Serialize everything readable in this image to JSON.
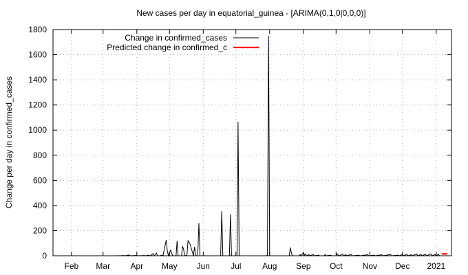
{
  "chart_data": {
    "type": "line",
    "title": "New cases per day in equatorial_guinea -  [ARIMA(0,1,0|0,0,0)]",
    "xlabel": "",
    "ylabel": "Change per day in confirmed_cases",
    "ylim": [
      0,
      1800
    ],
    "xlim": [
      "2020-01-15",
      "2021-01-15"
    ],
    "yticks": [
      0,
      200,
      400,
      600,
      800,
      1000,
      1200,
      1400,
      1600,
      1800
    ],
    "xticks": [
      {
        "label": "Feb",
        "date": "2020-02-01"
      },
      {
        "label": "Mar",
        "date": "2020-03-01"
      },
      {
        "label": "Apr",
        "date": "2020-04-01"
      },
      {
        "label": "May",
        "date": "2020-05-01"
      },
      {
        "label": "Jun",
        "date": "2020-06-01"
      },
      {
        "label": "Jul",
        "date": "2020-07-01"
      },
      {
        "label": "Aug",
        "date": "2020-08-01"
      },
      {
        "label": "Sep",
        "date": "2020-09-01"
      },
      {
        "label": "Oct",
        "date": "2020-10-01"
      },
      {
        "label": "Nov",
        "date": "2020-11-01"
      },
      {
        "label": "Dec",
        "date": "2020-12-01"
      },
      {
        "label": "2021",
        "date": "2021-01-01"
      }
    ],
    "grid": true,
    "legend_position": "top-right",
    "series": [
      {
        "name": "Change in confirmed_cases",
        "color": "#000000",
        "points": [
          [
            "2020-03-14",
            0
          ],
          [
            "2020-03-15",
            1
          ],
          [
            "2020-03-16",
            0
          ],
          [
            "2020-03-20",
            2
          ],
          [
            "2020-03-21",
            0
          ],
          [
            "2020-03-25",
            6
          ],
          [
            "2020-03-26",
            0
          ],
          [
            "2020-04-01",
            3
          ],
          [
            "2020-04-02",
            0
          ],
          [
            "2020-04-08",
            2
          ],
          [
            "2020-04-09",
            0
          ],
          [
            "2020-04-12",
            5
          ],
          [
            "2020-04-13",
            0
          ],
          [
            "2020-04-15",
            10
          ],
          [
            "2020-04-16",
            18
          ],
          [
            "2020-04-17",
            0
          ],
          [
            "2020-04-19",
            22
          ],
          [
            "2020-04-20",
            0
          ],
          [
            "2020-04-22",
            0
          ],
          [
            "2020-04-24",
            5
          ],
          [
            "2020-04-25",
            0
          ],
          [
            "2020-04-28",
            125
          ],
          [
            "2020-04-29",
            40
          ],
          [
            "2020-04-30",
            0
          ],
          [
            "2020-05-02",
            45
          ],
          [
            "2020-05-03",
            20
          ],
          [
            "2020-05-04",
            0
          ],
          [
            "2020-05-07",
            0
          ],
          [
            "2020-05-08",
            120
          ],
          [
            "2020-05-09",
            0
          ],
          [
            "2020-05-12",
            0
          ],
          [
            "2020-05-13",
            75
          ],
          [
            "2020-05-14",
            50
          ],
          [
            "2020-05-15",
            0
          ],
          [
            "2020-05-17",
            5
          ],
          [
            "2020-05-18",
            120
          ],
          [
            "2020-05-19",
            110
          ],
          [
            "2020-05-20",
            90
          ],
          [
            "2020-05-21",
            60
          ],
          [
            "2020-05-22",
            30
          ],
          [
            "2020-05-23",
            0
          ],
          [
            "2020-05-24",
            70
          ],
          [
            "2020-05-25",
            0
          ],
          [
            "2020-05-26",
            0
          ],
          [
            "2020-05-27",
            20
          ],
          [
            "2020-05-28",
            260
          ],
          [
            "2020-05-29",
            0
          ],
          [
            "2020-06-05",
            0
          ],
          [
            "2020-06-17",
            0
          ],
          [
            "2020-06-18",
            355
          ],
          [
            "2020-06-19",
            0
          ],
          [
            "2020-06-25",
            0
          ],
          [
            "2020-06-26",
            330
          ],
          [
            "2020-06-27",
            0
          ],
          [
            "2020-07-02",
            0
          ],
          [
            "2020-07-03",
            1065
          ],
          [
            "2020-07-04",
            0
          ],
          [
            "2020-07-29",
            0
          ],
          [
            "2020-07-30",
            5
          ],
          [
            "2020-07-31",
            1750
          ],
          [
            "2020-08-01",
            0
          ],
          [
            "2020-08-19",
            0
          ],
          [
            "2020-08-20",
            65
          ],
          [
            "2020-08-21",
            20
          ],
          [
            "2020-08-22",
            0
          ],
          [
            "2020-08-28",
            0
          ],
          [
            "2020-08-29",
            10
          ],
          [
            "2020-08-30",
            0
          ],
          [
            "2020-09-01",
            25
          ],
          [
            "2020-09-02",
            5
          ],
          [
            "2020-09-03",
            15
          ],
          [
            "2020-09-04",
            0
          ],
          [
            "2020-09-06",
            8
          ],
          [
            "2020-09-07",
            0
          ],
          [
            "2020-09-10",
            10
          ],
          [
            "2020-09-11",
            0
          ],
          [
            "2020-09-15",
            5
          ],
          [
            "2020-09-16",
            0
          ],
          [
            "2020-09-20",
            0
          ],
          [
            "2020-09-21",
            10
          ],
          [
            "2020-09-22",
            0
          ],
          [
            "2020-09-26",
            5
          ],
          [
            "2020-09-27",
            0
          ],
          [
            "2020-10-01",
            0
          ],
          [
            "2020-10-02",
            15
          ],
          [
            "2020-10-03",
            5
          ],
          [
            "2020-10-04",
            0
          ],
          [
            "2020-10-07",
            15
          ],
          [
            "2020-10-08",
            0
          ],
          [
            "2020-10-10",
            8
          ],
          [
            "2020-10-11",
            0
          ],
          [
            "2020-10-15",
            10
          ],
          [
            "2020-10-16",
            0
          ],
          [
            "2020-10-22",
            5
          ],
          [
            "2020-10-23",
            0
          ],
          [
            "2020-10-30",
            8
          ],
          [
            "2020-10-31",
            0
          ],
          [
            "2020-11-05",
            5
          ],
          [
            "2020-11-06",
            0
          ],
          [
            "2020-11-12",
            8
          ],
          [
            "2020-11-13",
            0
          ],
          [
            "2020-11-20",
            10
          ],
          [
            "2020-11-21",
            0
          ],
          [
            "2020-11-27",
            5
          ],
          [
            "2020-11-28",
            0
          ],
          [
            "2020-12-01",
            10
          ],
          [
            "2020-12-02",
            0
          ],
          [
            "2020-12-05",
            12
          ],
          [
            "2020-12-06",
            0
          ],
          [
            "2020-12-09",
            8
          ],
          [
            "2020-12-10",
            0
          ],
          [
            "2020-12-14",
            15
          ],
          [
            "2020-12-15",
            0
          ],
          [
            "2020-12-18",
            10
          ],
          [
            "2020-12-19",
            0
          ],
          [
            "2020-12-22",
            12
          ],
          [
            "2020-12-23",
            0
          ],
          [
            "2020-12-27",
            15
          ],
          [
            "2020-12-28",
            0
          ],
          [
            "2020-12-31",
            10
          ],
          [
            "2021-01-01",
            0
          ],
          [
            "2021-01-03",
            12
          ],
          [
            "2021-01-04",
            0
          ]
        ]
      },
      {
        "name": "Predicted change in confirmed_c",
        "color": "#ff0000",
        "points": [
          [
            "2021-01-06",
            15
          ],
          [
            "2021-01-11",
            15
          ]
        ]
      }
    ]
  }
}
